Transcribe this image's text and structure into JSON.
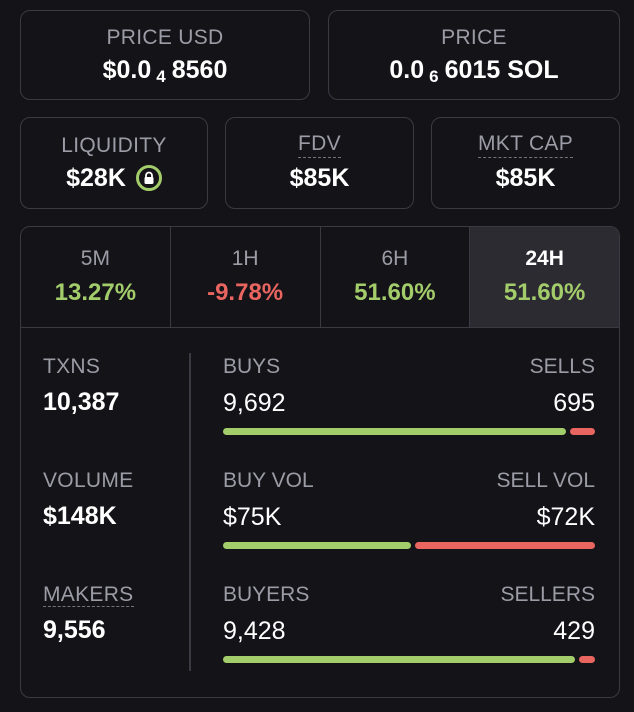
{
  "price_usd": {
    "label": "PRICE USD",
    "prefix": "$0.0",
    "sub": "4",
    "rest": "8560"
  },
  "price_sol": {
    "label": "PRICE",
    "prefix": "0.0",
    "sub": "6",
    "rest": "6015 SOL"
  },
  "liquidity": {
    "label": "LIQUIDITY",
    "value": "$28K",
    "icon": "lock-icon"
  },
  "fdv": {
    "label": "FDV",
    "value": "$85K"
  },
  "mkt_cap": {
    "label": "MKT CAP",
    "value": "$85K"
  },
  "tabs": [
    {
      "label": "5M",
      "value": "13.27%",
      "color": "#a3cc6a"
    },
    {
      "label": "1H",
      "value": "-9.78%",
      "color": "#e96560"
    },
    {
      "label": "6H",
      "value": "51.60%",
      "color": "#a3cc6a"
    },
    {
      "label": "24H",
      "value": "51.60%",
      "color": "#a3cc6a",
      "active": true
    }
  ],
  "txns": {
    "label": "TXNS",
    "value": "10,387"
  },
  "volume": {
    "label": "VOLUME",
    "value": "$148K"
  },
  "makers": {
    "label": "MAKERS",
    "value": "9,556"
  },
  "buys_sells": {
    "left_label": "BUYS",
    "right_label": "SELLS",
    "left_value": "9,692",
    "right_value": "695",
    "buy_fraction": 0.933
  },
  "buy_sell_vol": {
    "left_label": "BUY VOL",
    "right_label": "SELL VOL",
    "left_value": "$75K",
    "right_value": "$72K",
    "buy_fraction": 0.51
  },
  "buyers_sellers": {
    "left_label": "BUYERS",
    "right_label": "SELLERS",
    "left_value": "9,428",
    "right_value": "429",
    "buy_fraction": 0.956
  },
  "colors": {
    "buy": "#a3cc6a",
    "sell": "#e96560",
    "bg": "#131318",
    "border": "#3a3a42",
    "muted": "#9c9ca6"
  }
}
